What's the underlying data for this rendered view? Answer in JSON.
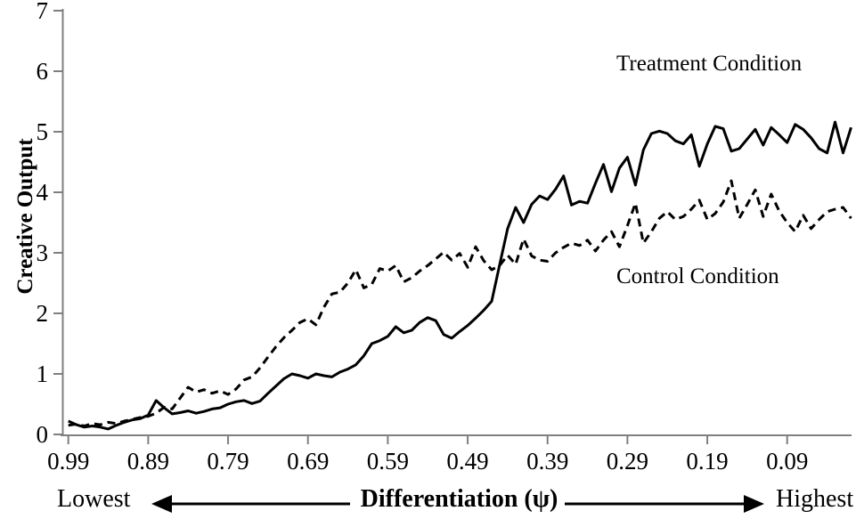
{
  "figure": {
    "y_axis_title": "Creative Output",
    "series_labels": {
      "treatment": "Treatment Condition",
      "control": "Control Condition"
    },
    "x_axis_annotation": {
      "left_label": "Lowest",
      "center_label": "Differentiation (ψ)",
      "right_label": "Highest"
    }
  },
  "chart_data": {
    "type": "line",
    "title": "",
    "xlabel": "Differentiation (ψ)",
    "ylabel": "Creative Output",
    "x_axis_reversed": true,
    "x_axis_note": "x runs from 0.99 (Lowest differentiation) at left to 0.01 (Highest) at right",
    "ylim": [
      0,
      7
    ],
    "grid": false,
    "legend_position": "inline-annotations",
    "y_ticks": [
      0,
      1,
      2,
      3,
      4,
      5,
      6,
      7
    ],
    "y_tick_labels": [
      "0",
      "1",
      "2",
      "3",
      "4",
      "5",
      "6",
      "7"
    ],
    "x_ticks": [
      0.99,
      0.89,
      0.79,
      0.69,
      0.59,
      0.49,
      0.39,
      0.29,
      0.19,
      0.09
    ],
    "x_tick_labels": [
      "0.99",
      "0.89",
      "0.79",
      "0.69",
      "0.59",
      "0.49",
      "0.39",
      "0.29",
      "0.19",
      "0.09"
    ],
    "x": [
      0.99,
      0.98,
      0.97,
      0.96,
      0.95,
      0.94,
      0.93,
      0.92,
      0.91,
      0.9,
      0.89,
      0.88,
      0.87,
      0.86,
      0.85,
      0.84,
      0.83,
      0.82,
      0.81,
      0.8,
      0.79,
      0.78,
      0.77,
      0.76,
      0.75,
      0.74,
      0.73,
      0.72,
      0.71,
      0.7,
      0.69,
      0.68,
      0.67,
      0.66,
      0.65,
      0.64,
      0.63,
      0.62,
      0.61,
      0.6,
      0.59,
      0.58,
      0.57,
      0.56,
      0.55,
      0.54,
      0.53,
      0.52,
      0.51,
      0.5,
      0.49,
      0.48,
      0.47,
      0.46,
      0.45,
      0.44,
      0.43,
      0.42,
      0.41,
      0.4,
      0.39,
      0.38,
      0.37,
      0.36,
      0.35,
      0.34,
      0.33,
      0.32,
      0.31,
      0.3,
      0.29,
      0.28,
      0.27,
      0.26,
      0.25,
      0.24,
      0.23,
      0.22,
      0.21,
      0.2,
      0.19,
      0.18,
      0.17,
      0.16,
      0.15,
      0.14,
      0.13,
      0.12,
      0.11,
      0.1,
      0.09,
      0.08,
      0.07,
      0.06,
      0.05,
      0.04,
      0.03,
      0.02,
      0.01
    ],
    "series": [
      {
        "name": "Treatment Condition",
        "style": "solid",
        "values": [
          0.22,
          0.16,
          0.12,
          0.14,
          0.12,
          0.09,
          0.15,
          0.2,
          0.24,
          0.26,
          0.32,
          0.56,
          0.44,
          0.34,
          0.36,
          0.39,
          0.35,
          0.38,
          0.42,
          0.44,
          0.5,
          0.54,
          0.56,
          0.51,
          0.55,
          0.68,
          0.8,
          0.92,
          1.0,
          0.97,
          0.93,
          1.0,
          0.97,
          0.95,
          1.03,
          1.08,
          1.15,
          1.3,
          1.5,
          1.55,
          1.62,
          1.78,
          1.68,
          1.72,
          1.85,
          1.93,
          1.88,
          1.65,
          1.59,
          1.7,
          1.8,
          1.92,
          2.05,
          2.2,
          2.8,
          3.4,
          3.75,
          3.5,
          3.8,
          3.94,
          3.88,
          4.05,
          4.27,
          3.79,
          3.85,
          3.82,
          4.15,
          4.46,
          4.01,
          4.4,
          4.58,
          4.12,
          4.7,
          4.97,
          5.01,
          4.97,
          4.85,
          4.8,
          4.95,
          4.43,
          4.8,
          5.09,
          5.05,
          4.68,
          4.72,
          4.88,
          5.04,
          4.78,
          5.07,
          4.95,
          4.82,
          5.12,
          5.04,
          4.9,
          4.72,
          4.65,
          5.16,
          4.65,
          5.07
        ]
      },
      {
        "name": "Control Condition",
        "style": "dashed",
        "values": [
          0.15,
          0.17,
          0.14,
          0.18,
          0.16,
          0.2,
          0.18,
          0.22,
          0.25,
          0.28,
          0.3,
          0.35,
          0.45,
          0.42,
          0.6,
          0.78,
          0.7,
          0.74,
          0.68,
          0.72,
          0.66,
          0.75,
          0.9,
          0.95,
          1.1,
          1.28,
          1.45,
          1.6,
          1.72,
          1.85,
          1.91,
          1.81,
          2.1,
          2.32,
          2.35,
          2.5,
          2.72,
          2.42,
          2.48,
          2.74,
          2.7,
          2.79,
          2.52,
          2.59,
          2.7,
          2.79,
          2.9,
          3.01,
          2.88,
          2.99,
          2.76,
          3.1,
          2.87,
          2.72,
          2.79,
          2.96,
          2.81,
          3.23,
          2.95,
          2.88,
          2.86,
          3.0,
          3.09,
          3.16,
          3.12,
          3.21,
          3.03,
          3.21,
          3.35,
          3.1,
          3.45,
          3.82,
          3.16,
          3.35,
          3.57,
          3.68,
          3.55,
          3.6,
          3.72,
          3.87,
          3.55,
          3.65,
          3.84,
          4.19,
          3.57,
          3.8,
          4.04,
          3.6,
          3.97,
          3.69,
          3.5,
          3.35,
          3.62,
          3.4,
          3.55,
          3.68,
          3.72,
          3.75,
          3.57
        ]
      }
    ],
    "colors": {
      "line": "#000000",
      "axis": "#7f7f7f",
      "background": "#ffffff",
      "text": "#000000"
    }
  }
}
